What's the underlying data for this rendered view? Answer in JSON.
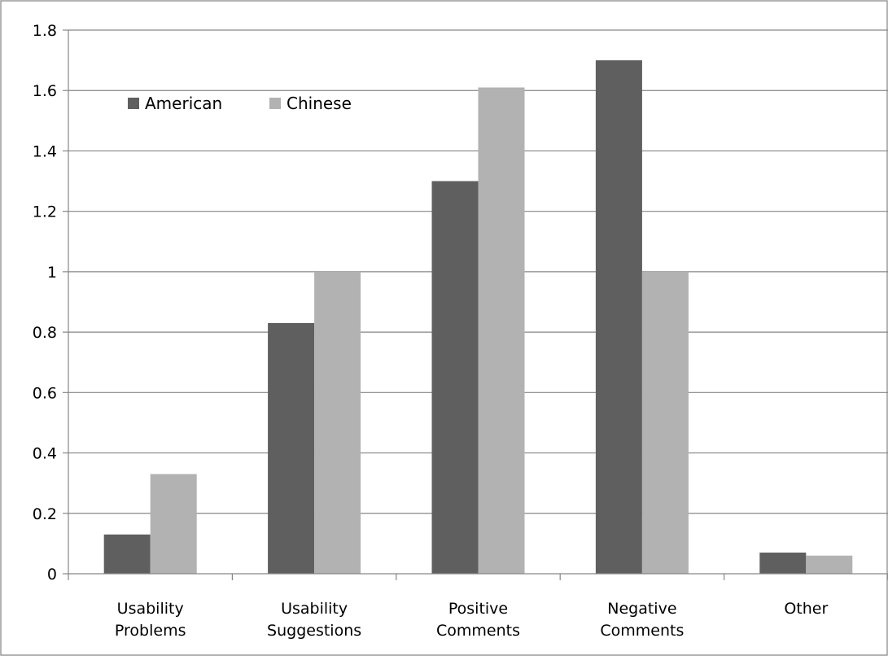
{
  "chart_data": {
    "type": "bar",
    "title": "",
    "xlabel": "",
    "ylabel": "",
    "categories": [
      [
        "Usability",
        "Problems"
      ],
      [
        "Usability",
        "Suggestions"
      ],
      [
        "Positive",
        "Comments"
      ],
      [
        "Negative",
        "Comments"
      ],
      [
        "Other"
      ]
    ],
    "series": [
      {
        "name": "American",
        "color": "#5f5f5f",
        "values": [
          0.13,
          0.83,
          1.3,
          1.7,
          0.07
        ]
      },
      {
        "name": "Chinese",
        "color": "#b2b2b2",
        "values": [
          0.33,
          1.0,
          1.61,
          1.0,
          0.06
        ]
      }
    ],
    "ylim": [
      0,
      1.8
    ],
    "yticks": [
      "0",
      "0.2",
      "0.4",
      "0.6",
      "0.8",
      "1",
      "1.2",
      "1.4",
      "1.6",
      "1.8"
    ],
    "grid": true,
    "legend_position": "top-left"
  }
}
